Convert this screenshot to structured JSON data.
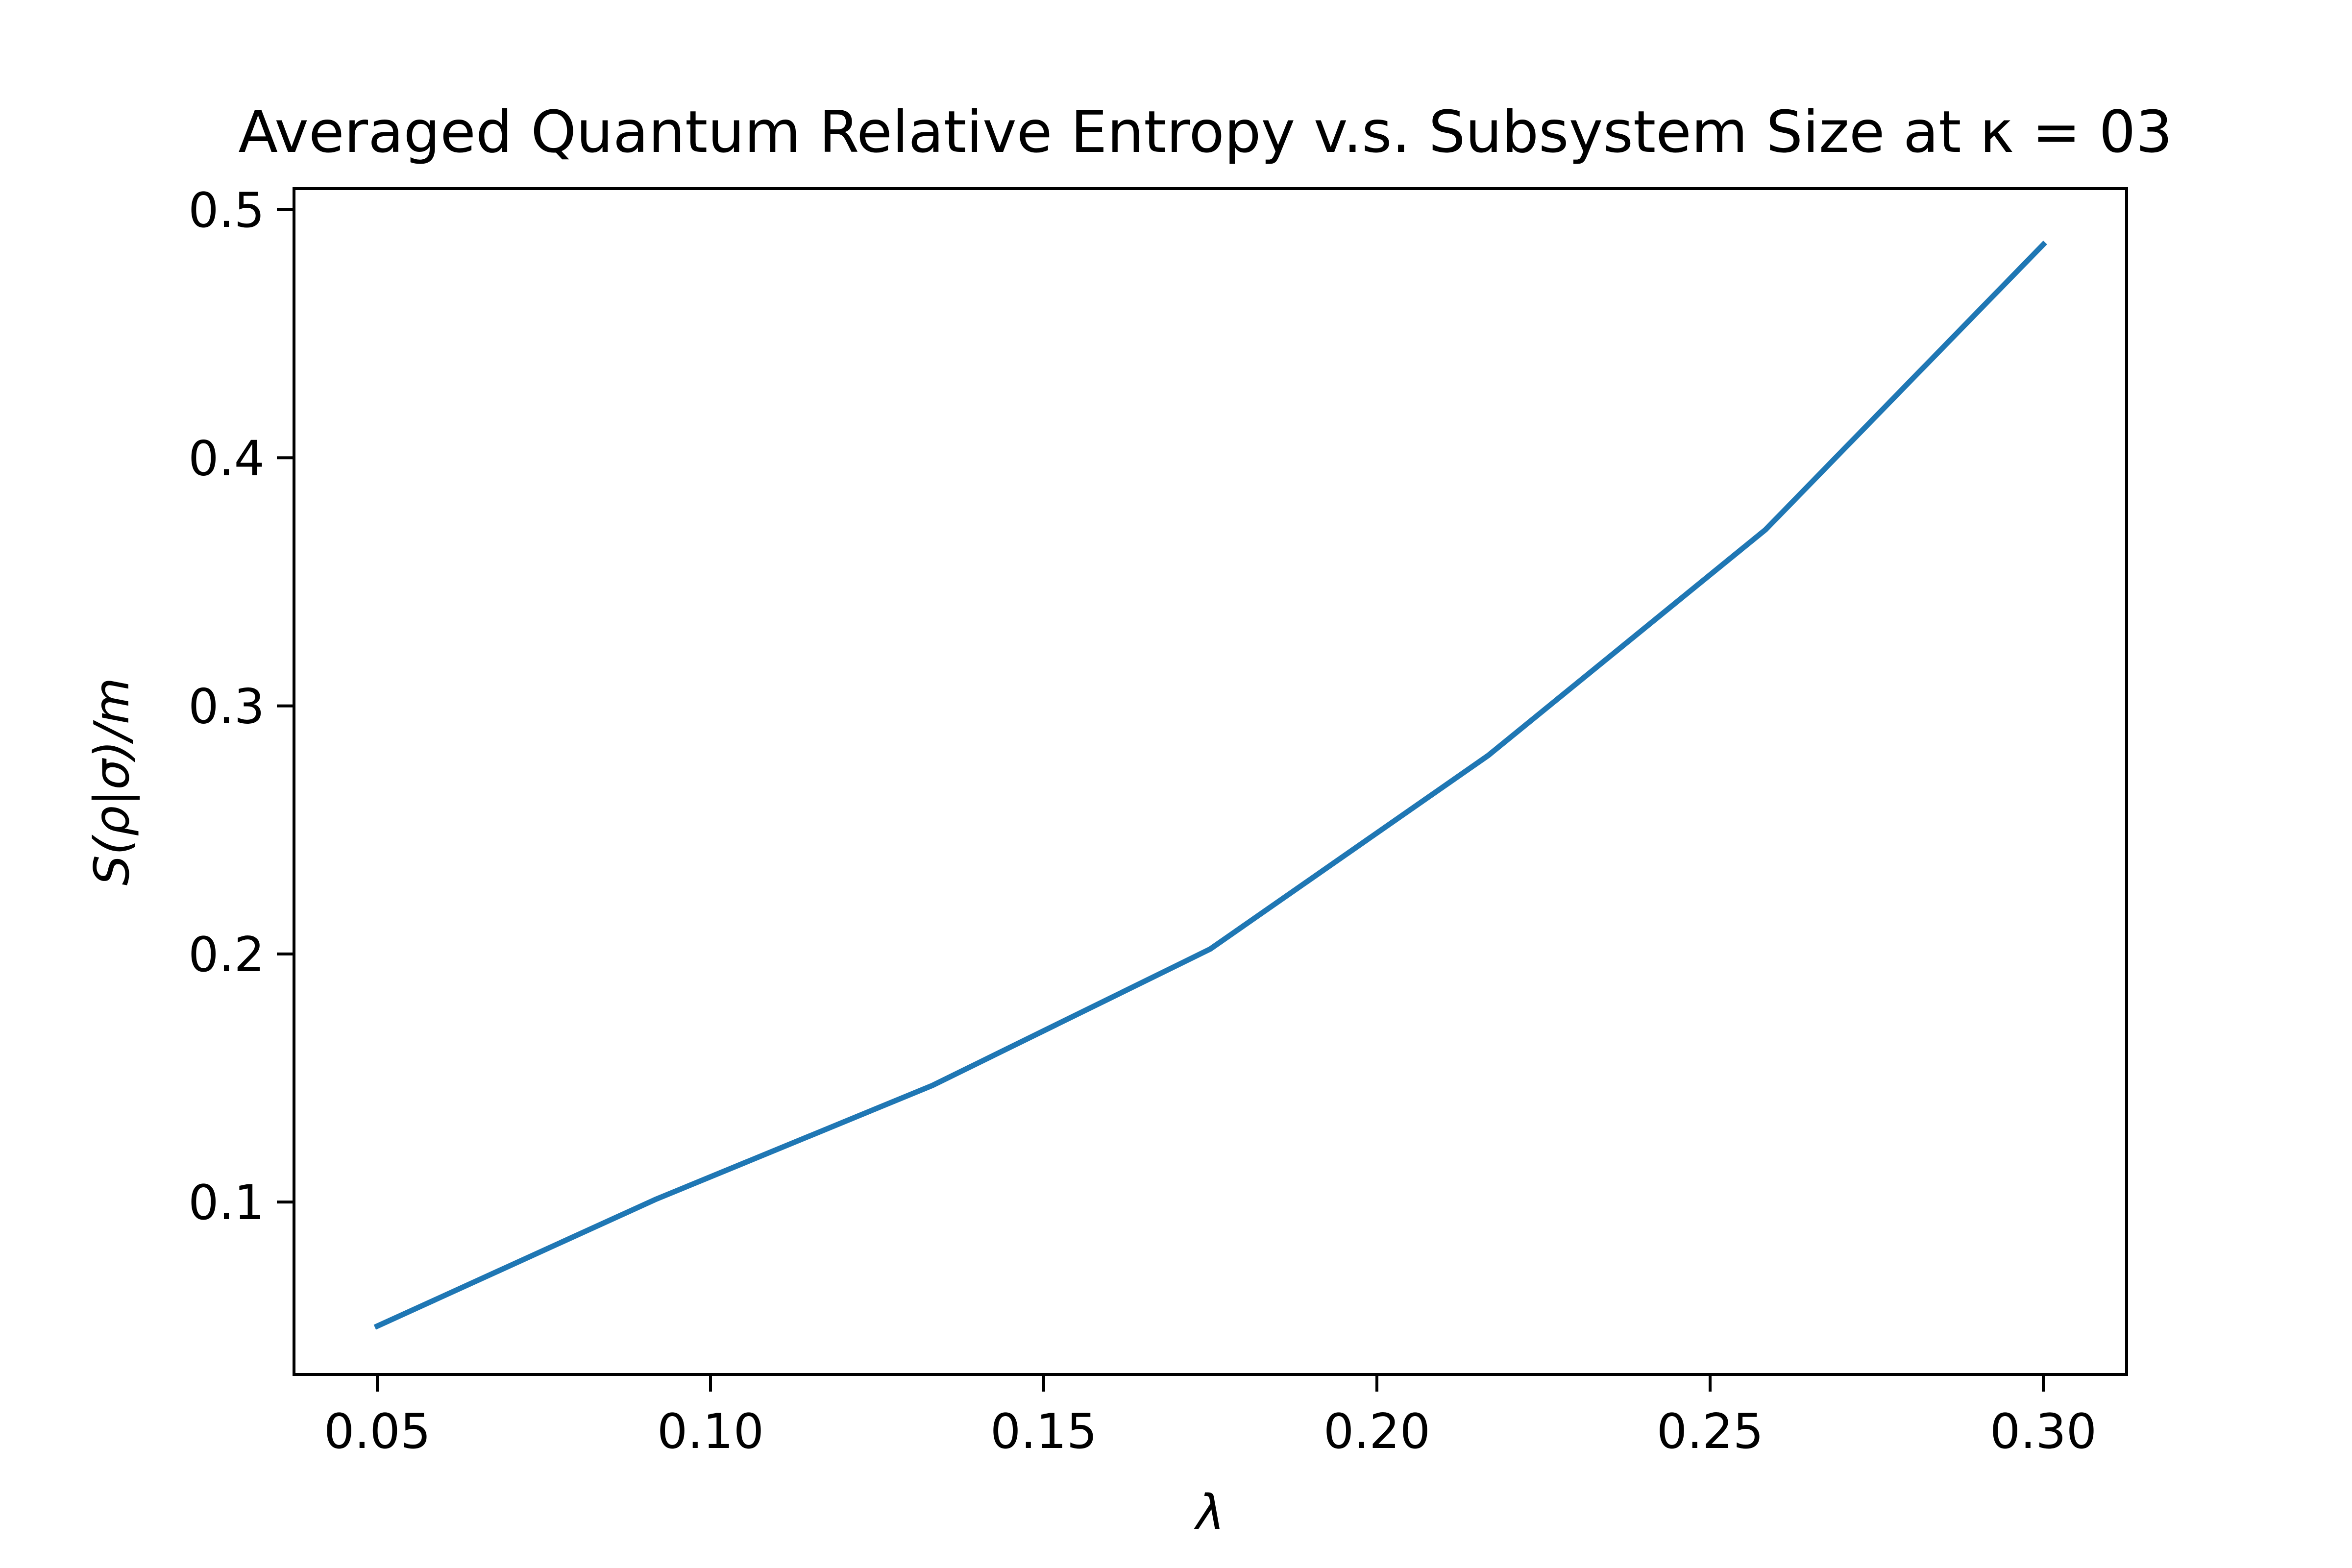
{
  "chart_data": {
    "type": "line",
    "title": "Averaged Quantum Relative Entropy v.s. Subsystem Size at κ = 03",
    "xlabel": "λ",
    "ylabel": "S(ρ|σ)/m",
    "xlim": [
      0.0375,
      0.3125
    ],
    "ylim": [
      0.0305,
      0.5085
    ],
    "x_ticks": [
      0.05,
      0.1,
      0.15,
      0.2,
      0.25,
      0.3
    ],
    "x_tick_labels": [
      "0.05",
      "0.10",
      "0.15",
      "0.20",
      "0.25",
      "0.30"
    ],
    "y_ticks": [
      0.1,
      0.2,
      0.3,
      0.4,
      0.5
    ],
    "y_tick_labels": [
      "0.1",
      "0.2",
      "0.3",
      "0.4",
      "0.5"
    ],
    "grid": false,
    "series": [
      {
        "color": "#1f77b4",
        "x": [
          0.05,
          0.0917,
          0.1333,
          0.175,
          0.2167,
          0.2583,
          0.3
        ],
        "y": [
          0.05,
          0.101,
          0.147,
          0.202,
          0.28,
          0.371,
          0.486
        ]
      }
    ]
  }
}
